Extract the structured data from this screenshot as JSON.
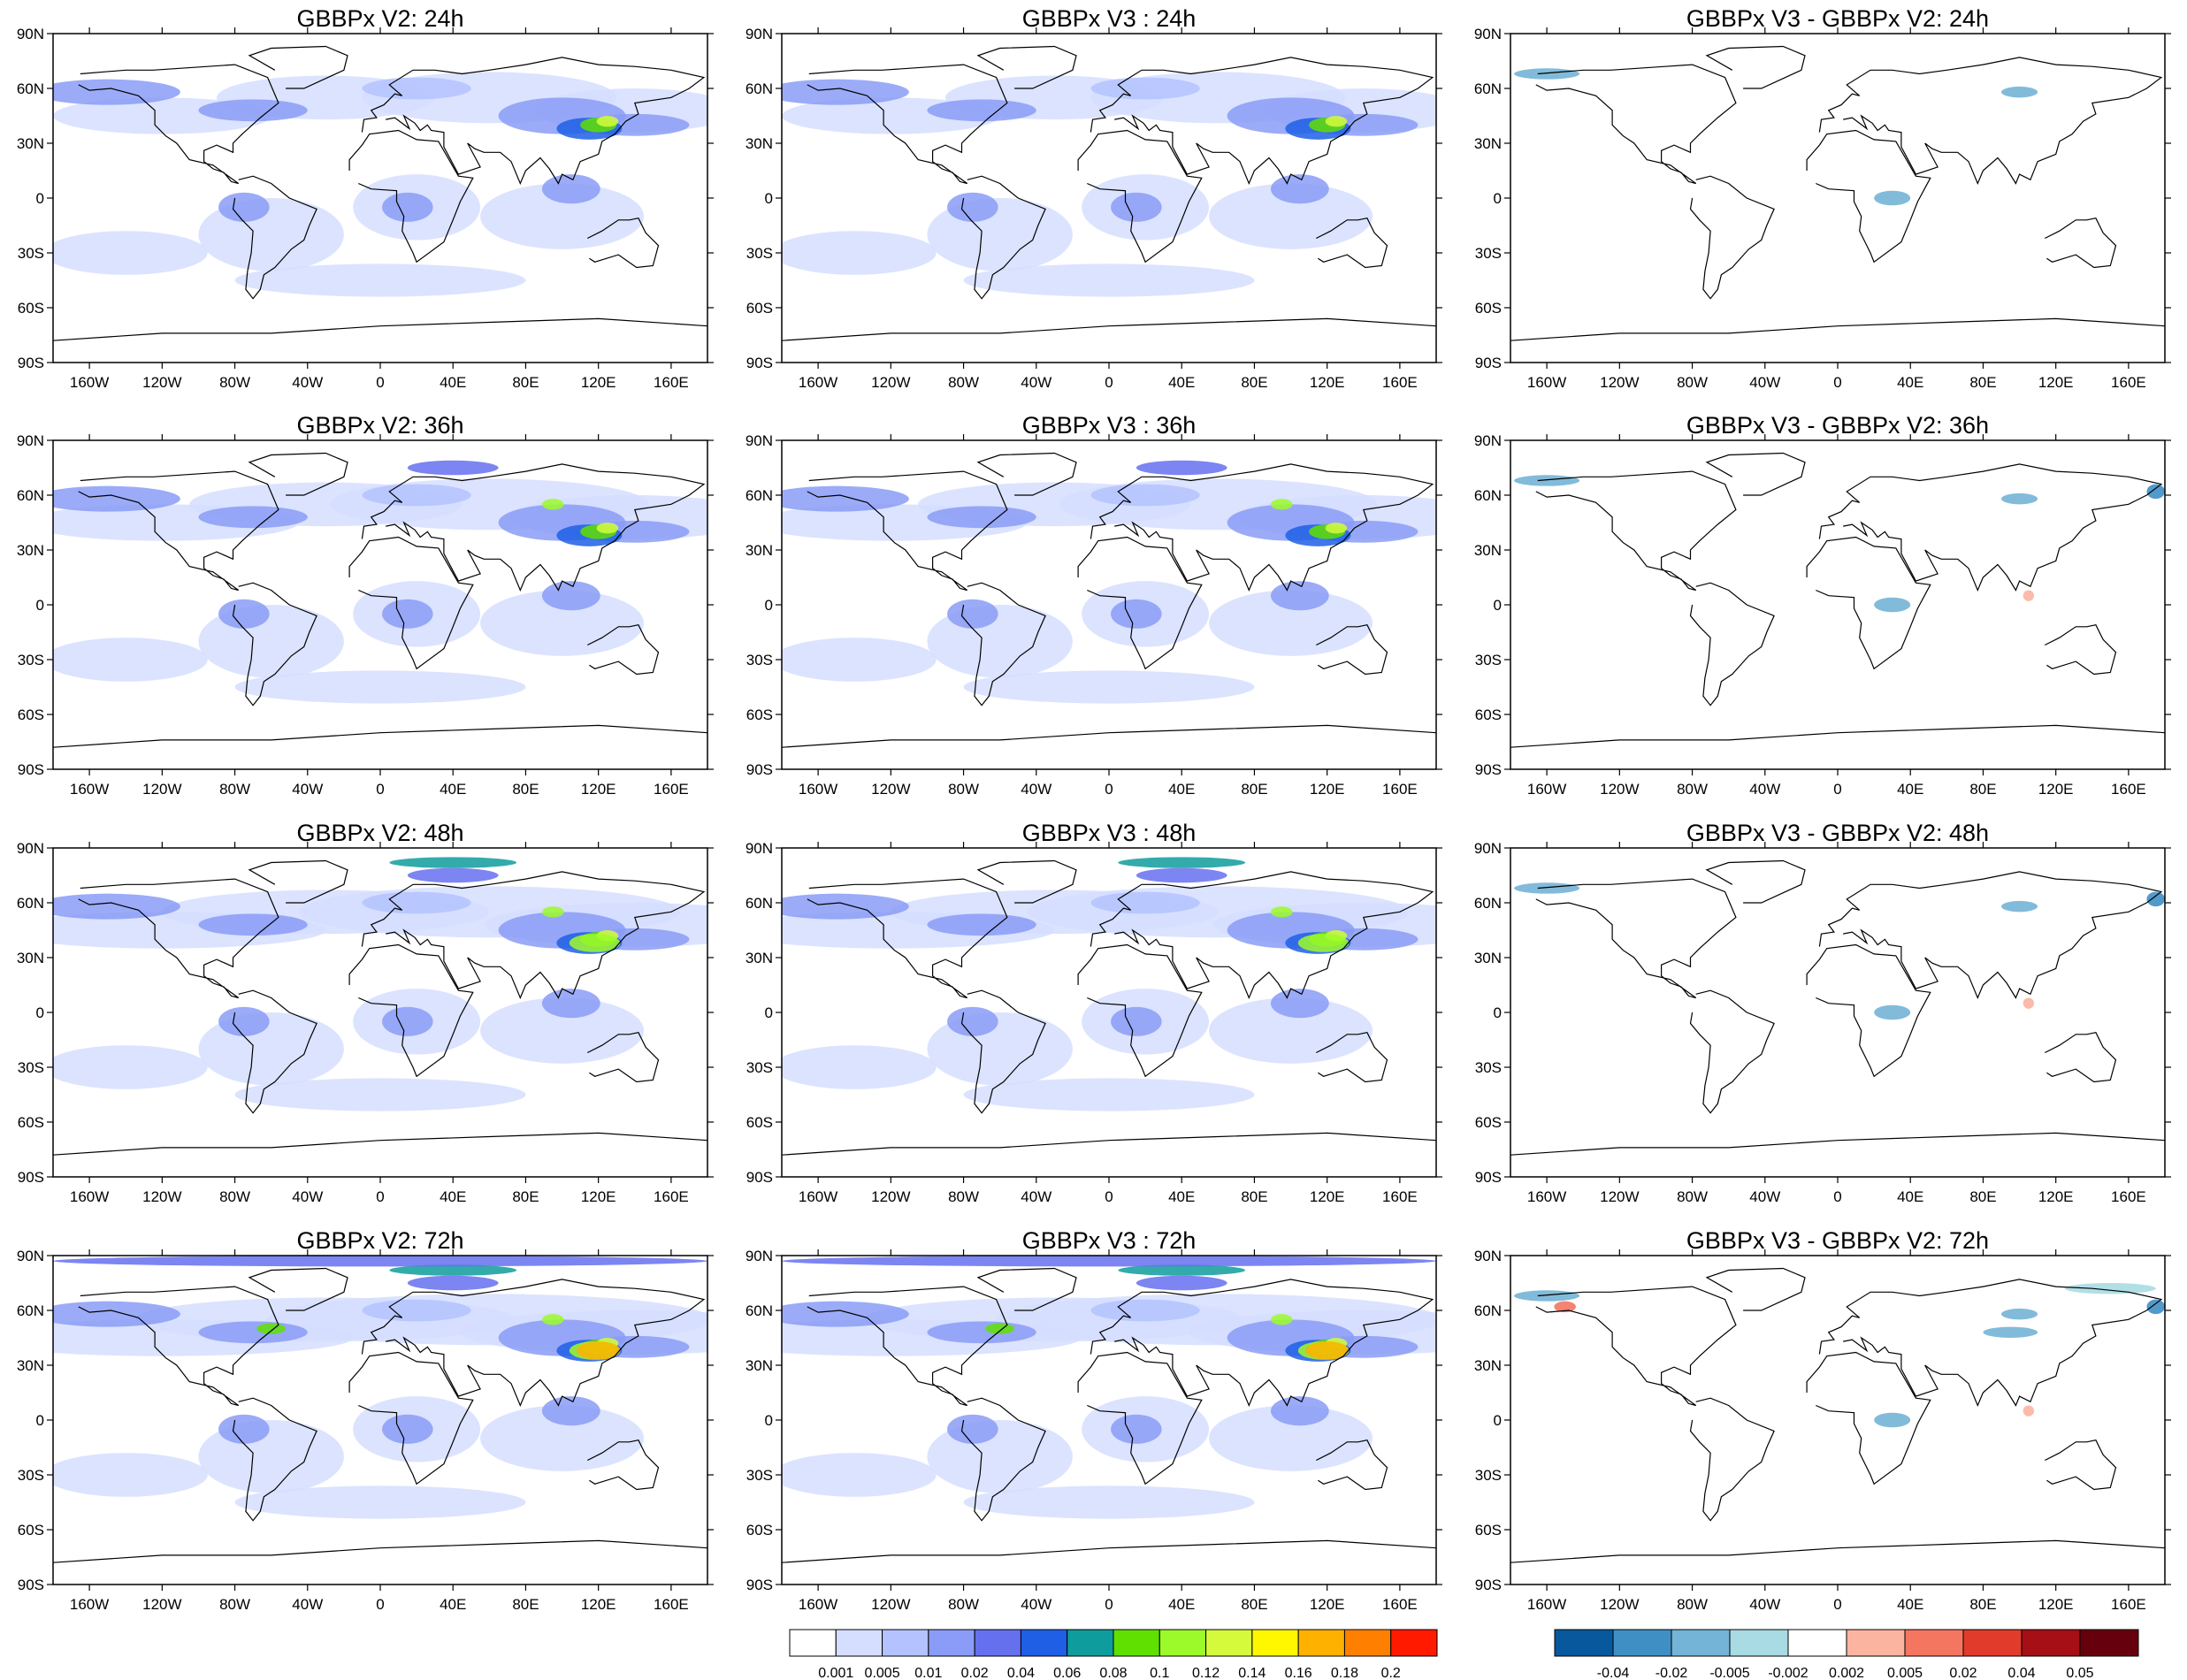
{
  "figure": {
    "columns": [
      {
        "id": "v2",
        "kind": "value",
        "palette": "seq"
      },
      {
        "id": "v3",
        "kind": "value",
        "palette": "seq"
      },
      {
        "id": "diff",
        "kind": "diff",
        "palette": "div"
      }
    ],
    "rows": [
      "24h",
      "36h",
      "48h",
      "72h"
    ],
    "titles": [
      [
        "GBBPx V2: 24h",
        "GBBPx V3 : 24h",
        "GBBPx V3 - GBBPx V2: 24h"
      ],
      [
        "GBBPx V2: 36h",
        "GBBPx V3 : 36h",
        "GBBPx V3 - GBBPx V2: 36h"
      ],
      [
        "GBBPx V2: 48h",
        "GBBPx V3 : 48h",
        "GBBPx V3 - GBBPx V2: 48h"
      ],
      [
        "GBBPx V2: 72h",
        "GBBPx V3 : 72h",
        "GBBPx V3 - GBBPx V2: 72h"
      ]
    ],
    "lat_ticks": [
      "90N",
      "60N",
      "30N",
      "0",
      "30S",
      "60S",
      "90S"
    ],
    "lon_ticks": [
      "160W",
      "120W",
      "80W",
      "40W",
      "0",
      "40E",
      "80E",
      "120E",
      "160E"
    ],
    "lat_tick_values": [
      90,
      60,
      30,
      0,
      -30,
      -60,
      -90
    ],
    "lon_tick_values": [
      -160,
      -120,
      -80,
      -40,
      0,
      40,
      80,
      120,
      160
    ]
  },
  "colorbars": {
    "sequential": {
      "labels": [
        "0.001",
        "0.005",
        "0.01",
        "0.02",
        "0.04",
        "0.06",
        "0.08",
        "0.1",
        "0.12",
        "0.14",
        "0.16",
        "0.18",
        "0.2"
      ],
      "colors": [
        "#ffffff",
        "#d5deff",
        "#b4c3ff",
        "#8a9cf7",
        "#6570ef",
        "#1f5fe6",
        "#0f9c9c",
        "#5fe000",
        "#9dfa2a",
        "#d5fa3c",
        "#fff700",
        "#ffb100",
        "#ff8000",
        "#ff1a00"
      ]
    },
    "diverging": {
      "labels": [
        "-0.04",
        "-0.02",
        "-0.005",
        "-0.002",
        "0.002",
        "0.005",
        "0.02",
        "0.04",
        "0.05"
      ],
      "colors": [
        "#08589e",
        "#3f8fc5",
        "#74b4d6",
        "#a8dbe3",
        "#ffffff",
        "#fbb4a0",
        "#f47560",
        "#e13b2c",
        "#a50f15",
        "#67000d"
      ]
    }
  }
}
